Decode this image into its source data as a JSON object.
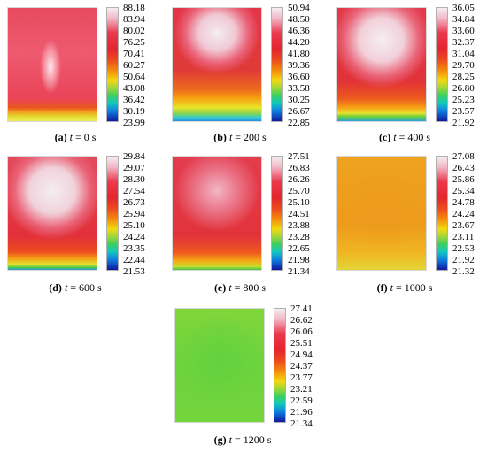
{
  "panels": [
    {
      "label": "(a)",
      "t_var": "t",
      "eq_value": " = 0 s",
      "scale": [
        "88.18",
        "83.94",
        "80.02",
        "76.25",
        "70.41",
        "60.27",
        "50.64",
        "43.08",
        "36.42",
        "30.19",
        "23.99"
      ]
    },
    {
      "label": "(b)",
      "t_var": "t",
      "eq_value": " = 200 s",
      "scale": [
        "50.94",
        "48.50",
        "46.36",
        "44.20",
        "41.80",
        "39.36",
        "36.60",
        "33.58",
        "30.25",
        "26.67",
        "22.85"
      ]
    },
    {
      "label": "(c)",
      "t_var": "t",
      "eq_value": " = 400 s",
      "scale": [
        "36.05",
        "34.84",
        "33.60",
        "32.37",
        "31.04",
        "29.70",
        "28.25",
        "26.80",
        "25.23",
        "23.57",
        "21.92"
      ]
    },
    {
      "label": "(d)",
      "t_var": "t",
      "eq_value": " = 600 s",
      "scale": [
        "29.84",
        "29.07",
        "28.30",
        "27.54",
        "26.73",
        "25.94",
        "25.10",
        "24.24",
        "23.35",
        "22.44",
        "21.53"
      ]
    },
    {
      "label": "(e)",
      "t_var": "t",
      "eq_value": " = 800 s",
      "scale": [
        "27.51",
        "26.83",
        "26.26",
        "25.70",
        "25.10",
        "24.51",
        "23.88",
        "23.28",
        "22.65",
        "21.98",
        "21.34"
      ]
    },
    {
      "label": "(f)",
      "t_var": "t",
      "eq_value": " = 1000 s",
      "scale": [
        "27.08",
        "26.43",
        "25.86",
        "25.34",
        "24.78",
        "24.24",
        "23.67",
        "23.11",
        "22.53",
        "21.92",
        "21.32"
      ]
    },
    {
      "label": "(g)",
      "t_var": "t",
      "eq_value": " = 1200 s",
      "scale": [
        "27.41",
        "26.62",
        "26.06",
        "25.51",
        "24.94",
        "24.37",
        "23.77",
        "23.21",
        "22.59",
        "21.96",
        "21.34"
      ]
    }
  ]
}
